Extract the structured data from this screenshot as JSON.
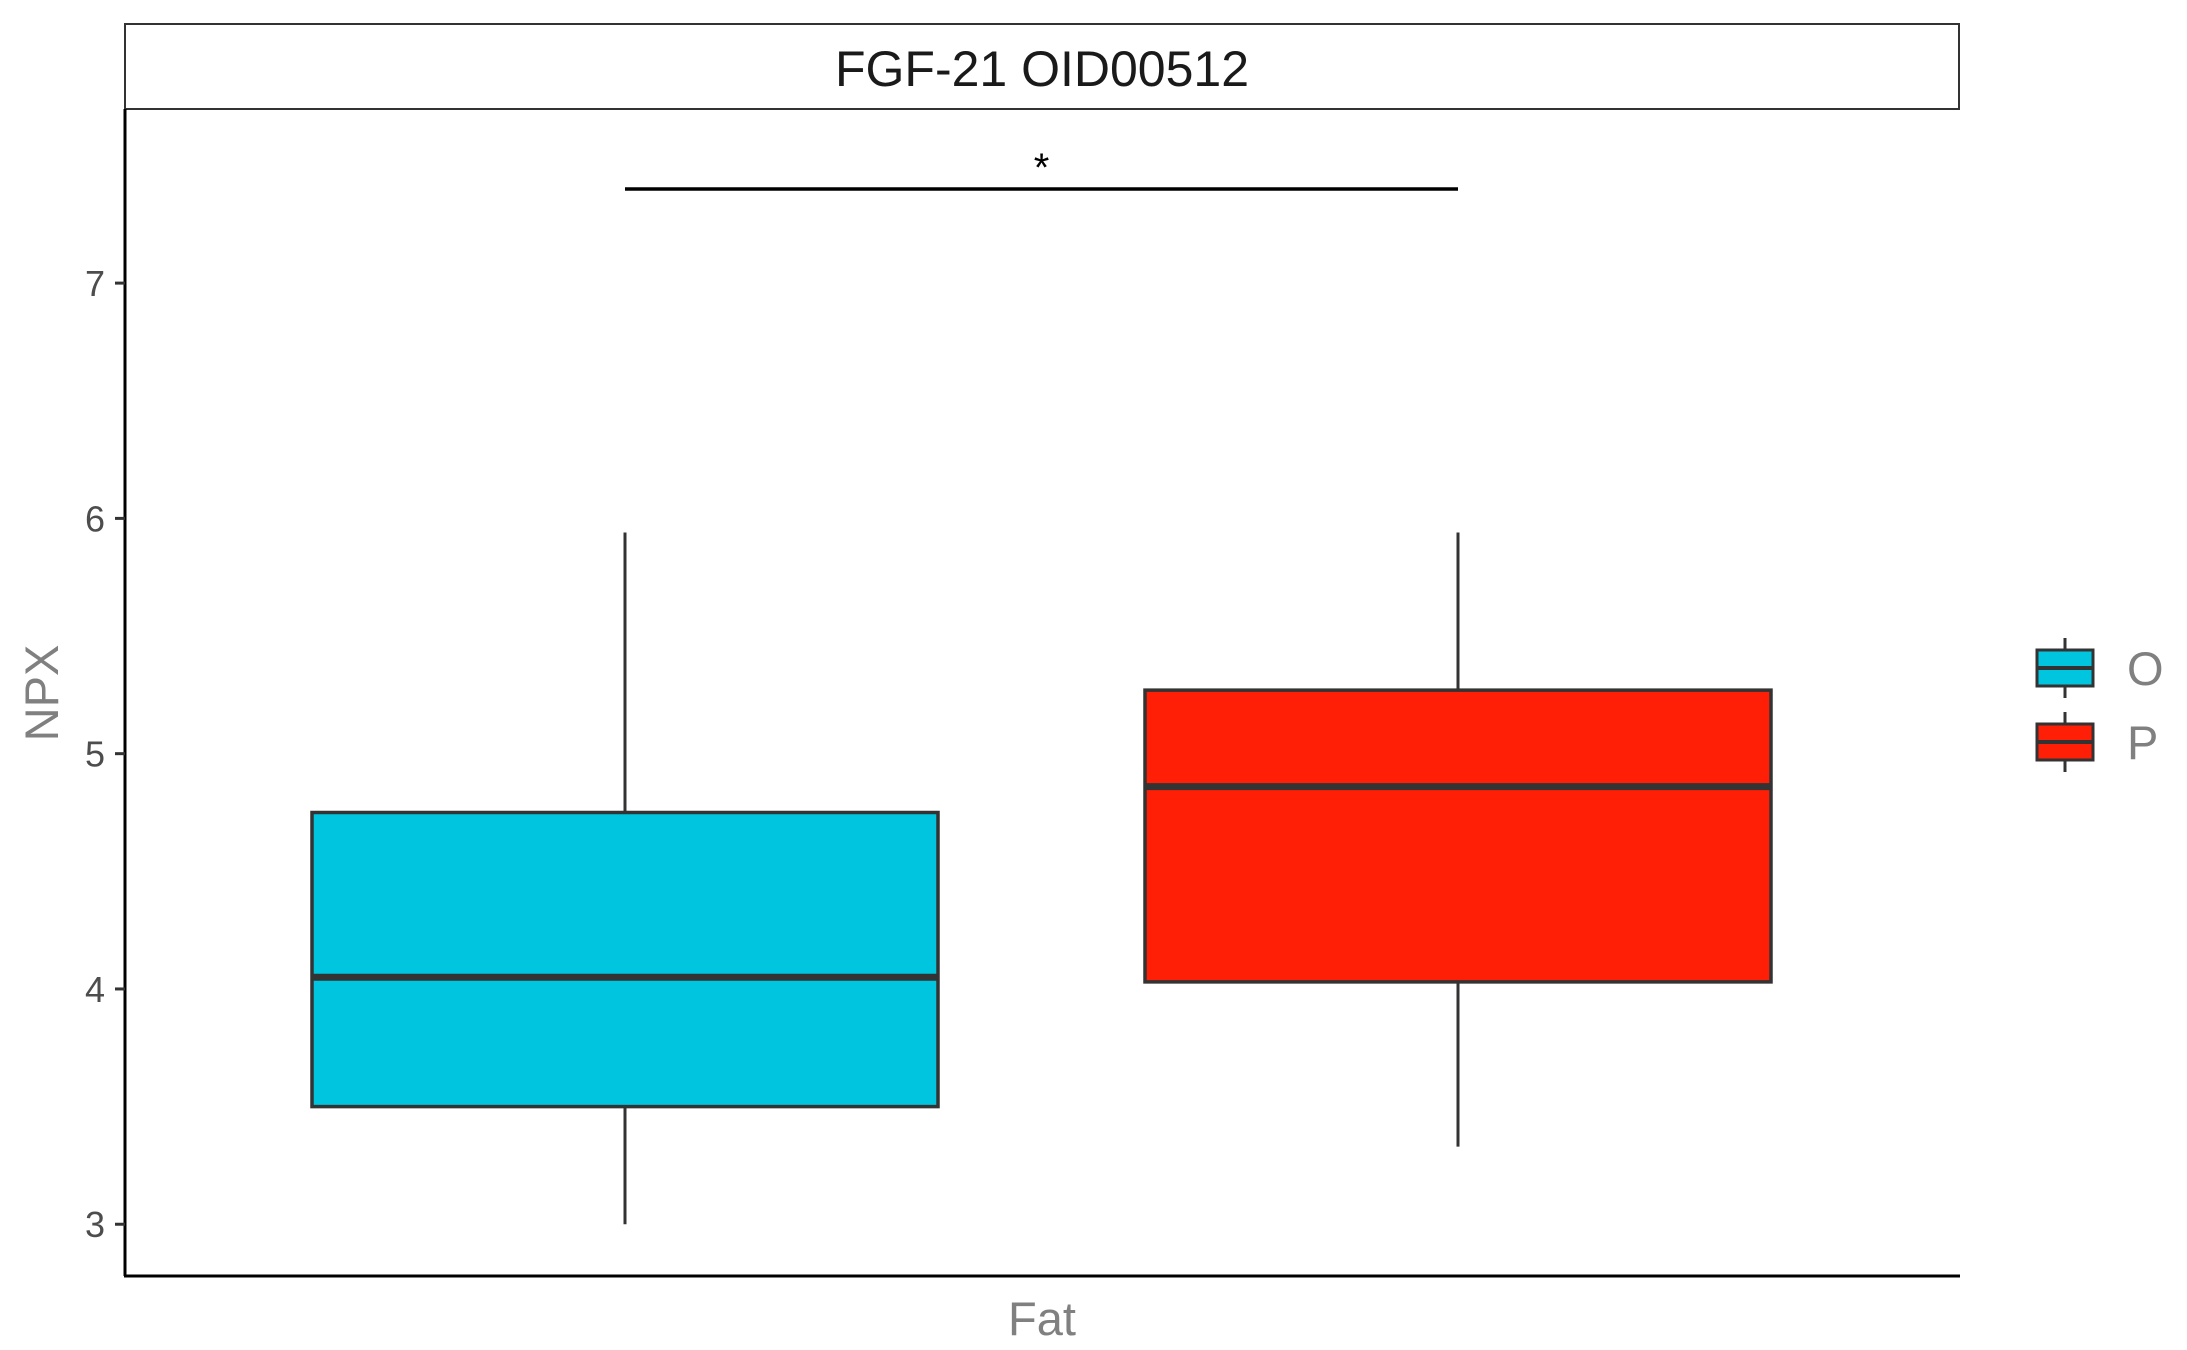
{
  "chart_data": {
    "type": "boxplot",
    "facet_title": "FGF-21 OID00512",
    "xlabel": "Fat",
    "ylabel": "NPX",
    "categories": [
      "Fat"
    ],
    "ylim": [
      2.78,
      7.74
    ],
    "yticks": [
      3,
      4,
      5,
      6,
      7
    ],
    "series": [
      {
        "name": "O",
        "color": "#00C5DF",
        "whisker_low": 3.0,
        "q1": 3.5,
        "median": 4.05,
        "q3": 4.75,
        "whisker_high": 5.94
      },
      {
        "name": "P",
        "color": "#FF1F07",
        "whisker_low": 3.33,
        "q1": 4.03,
        "median": 4.86,
        "q3": 5.27,
        "whisker_high": 5.94
      }
    ],
    "significance": {
      "label": "*",
      "y": 7.4,
      "between": [
        "O",
        "P"
      ]
    },
    "legend": {
      "position": "right",
      "items": [
        "O",
        "P"
      ]
    },
    "grid": false
  }
}
